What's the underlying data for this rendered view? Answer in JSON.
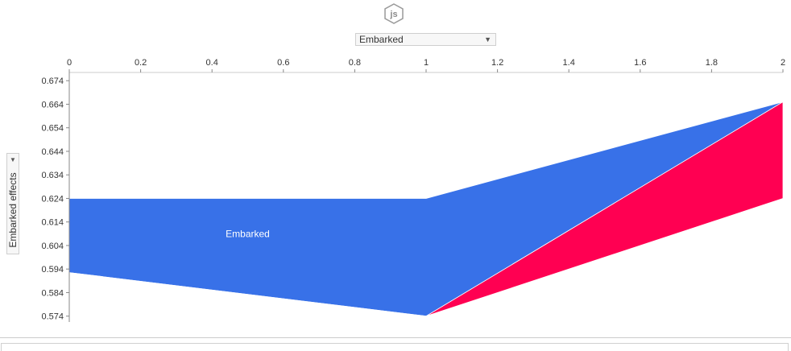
{
  "feature_dropdown": {
    "selected": "Embarked"
  },
  "yaxis_dropdown": {
    "selected": "Embarked effects"
  },
  "icons": {
    "logo": "js-hexagon-icon",
    "dropdown_arrow": "triangle-down-icon"
  },
  "colors": {
    "positive": "#ff0052",
    "negative": "#3871e8",
    "axis": "#333333"
  },
  "chart_data": {
    "type": "area",
    "xlabel": "",
    "ylabel": "Embarked effects",
    "xlim": [
      0,
      2
    ],
    "ylim": [
      0.5715,
      0.6775
    ],
    "x_ticks": [
      "0",
      "0.2",
      "0.4",
      "0.6",
      "0.8",
      "1",
      "1.2",
      "1.4",
      "1.6",
      "1.8",
      "2"
    ],
    "y_ticks": [
      "0.674",
      "0.664",
      "0.654",
      "0.644",
      "0.634",
      "0.624",
      "0.614",
      "0.604",
      "0.594",
      "0.584",
      "0.574"
    ],
    "x": [
      0,
      1,
      2
    ],
    "base_value": [
      0.624,
      0.624,
      0.624
    ],
    "output_value": [
      0.5925,
      0.574,
      0.665
    ],
    "series": [
      {
        "name": "Embarked",
        "kind": "negative",
        "upper": [
          0.624,
          0.624,
          0.665
        ],
        "lower": [
          0.5925,
          0.574,
          0.665
        ]
      },
      {
        "name": "",
        "kind": "positive",
        "upper": [
          0.5925,
          0.574,
          0.665
        ],
        "lower": [
          0.5925,
          0.574,
          0.624
        ]
      }
    ],
    "annotations": [
      {
        "text": "Embarked",
        "x": 0.5,
        "y": 0.6075
      }
    ]
  }
}
